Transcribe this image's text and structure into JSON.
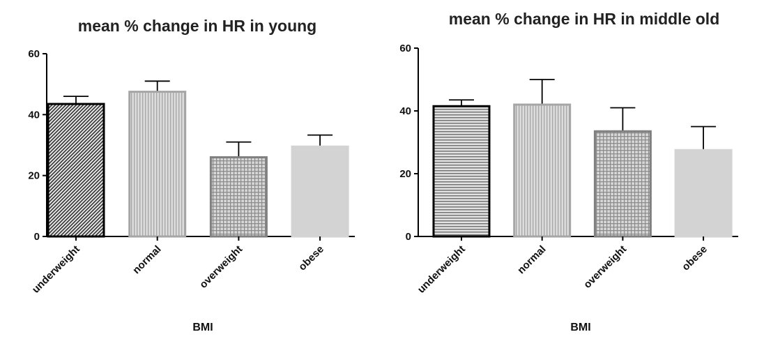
{
  "chart_data": [
    {
      "type": "bar",
      "title": "mean % change in HR in young",
      "xlabel": "BMI",
      "ylabel": "",
      "ylim": [
        0,
        60
      ],
      "yticks": [
        0,
        20,
        40,
        60
      ],
      "categories": [
        "underweight",
        "normal",
        "overweight",
        "obese"
      ],
      "values": [
        43.5,
        47.5,
        26,
        29.5
      ],
      "errors": [
        2.5,
        3.5,
        5,
        3.8
      ],
      "bar_styles": [
        {
          "fill": "diagonal-hatch",
          "stroke": "#000000"
        },
        {
          "fill": "vertical-lines",
          "stroke": "#a6a6a6"
        },
        {
          "fill": "grid-hatch",
          "stroke": "#808080"
        },
        {
          "fill": "solid",
          "stroke": "#d3d3d3",
          "color": "#d3d3d3"
        }
      ],
      "grid": false,
      "legend": "none"
    },
    {
      "type": "bar",
      "title": "mean % change in HR in middle old",
      "xlabel": "BMI",
      "ylabel": "",
      "ylim": [
        0,
        60
      ],
      "yticks": [
        0,
        20,
        40,
        60
      ],
      "categories": [
        "underweight",
        "normal",
        "overweight",
        "obese"
      ],
      "values": [
        41.5,
        42,
        33.5,
        27.5
      ],
      "errors": [
        2,
        8,
        7.5,
        7.5
      ],
      "bar_styles": [
        {
          "fill": "horizontal-lines",
          "stroke": "#000000"
        },
        {
          "fill": "vertical-lines",
          "stroke": "#a6a6a6"
        },
        {
          "fill": "grid-hatch",
          "stroke": "#808080"
        },
        {
          "fill": "solid",
          "stroke": "#d3d3d3",
          "color": "#d3d3d3"
        }
      ],
      "grid": false,
      "legend": "none"
    }
  ]
}
